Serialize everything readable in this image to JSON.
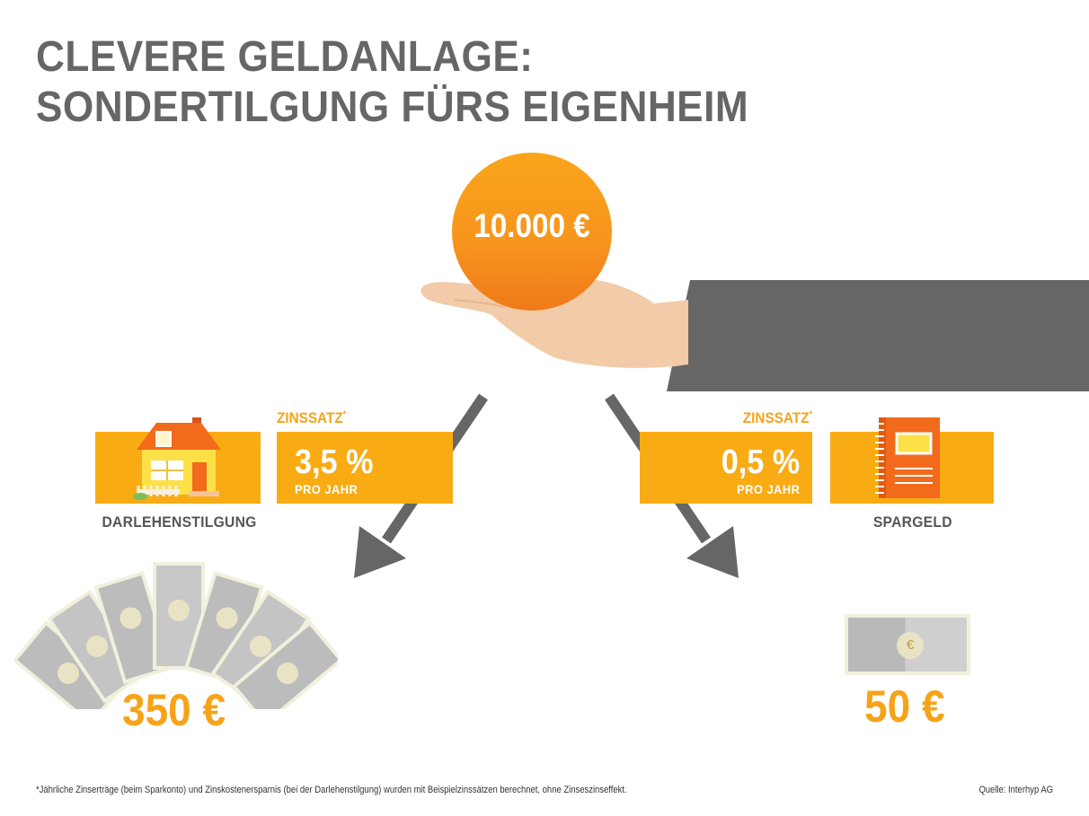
{
  "title": {
    "line1": "CLEVERE GELDANLAGE:",
    "line2": "SONDERTILGUNG FÜRS EIGENHEIM"
  },
  "coin": {
    "amount": "10.000 €"
  },
  "left": {
    "rate_label": "ZINSSATZ",
    "rate_mark": "*",
    "rate_value": "3,5 %",
    "rate_period": "PRO JAHR",
    "caption": "DARLEHENSTILGUNG",
    "result": "350 €",
    "icon": "house-icon"
  },
  "right": {
    "rate_label": "ZINSSATZ",
    "rate_mark": "*",
    "rate_value": "0,5 %",
    "rate_period": "PRO JAHR",
    "caption": "SPARGELD",
    "result": "50 €",
    "icon": "notebook-icon"
  },
  "banknote_symbol": "€",
  "footnote": "*Jährliche Zinserträge (beim Sparkonto) und Zinskostenersparnis (bei der Darlehenstilgung) wurden mit Beispielzinssätzen berechnet, ohne Zinseszinseffekt.",
  "source": "Quelle: Interhyp AG",
  "colors": {
    "accent": "#f9ab14",
    "orange": "#f7951d",
    "title_gray": "#666666",
    "sleeve_gray": "#666666",
    "skin": "#f2cba8"
  }
}
